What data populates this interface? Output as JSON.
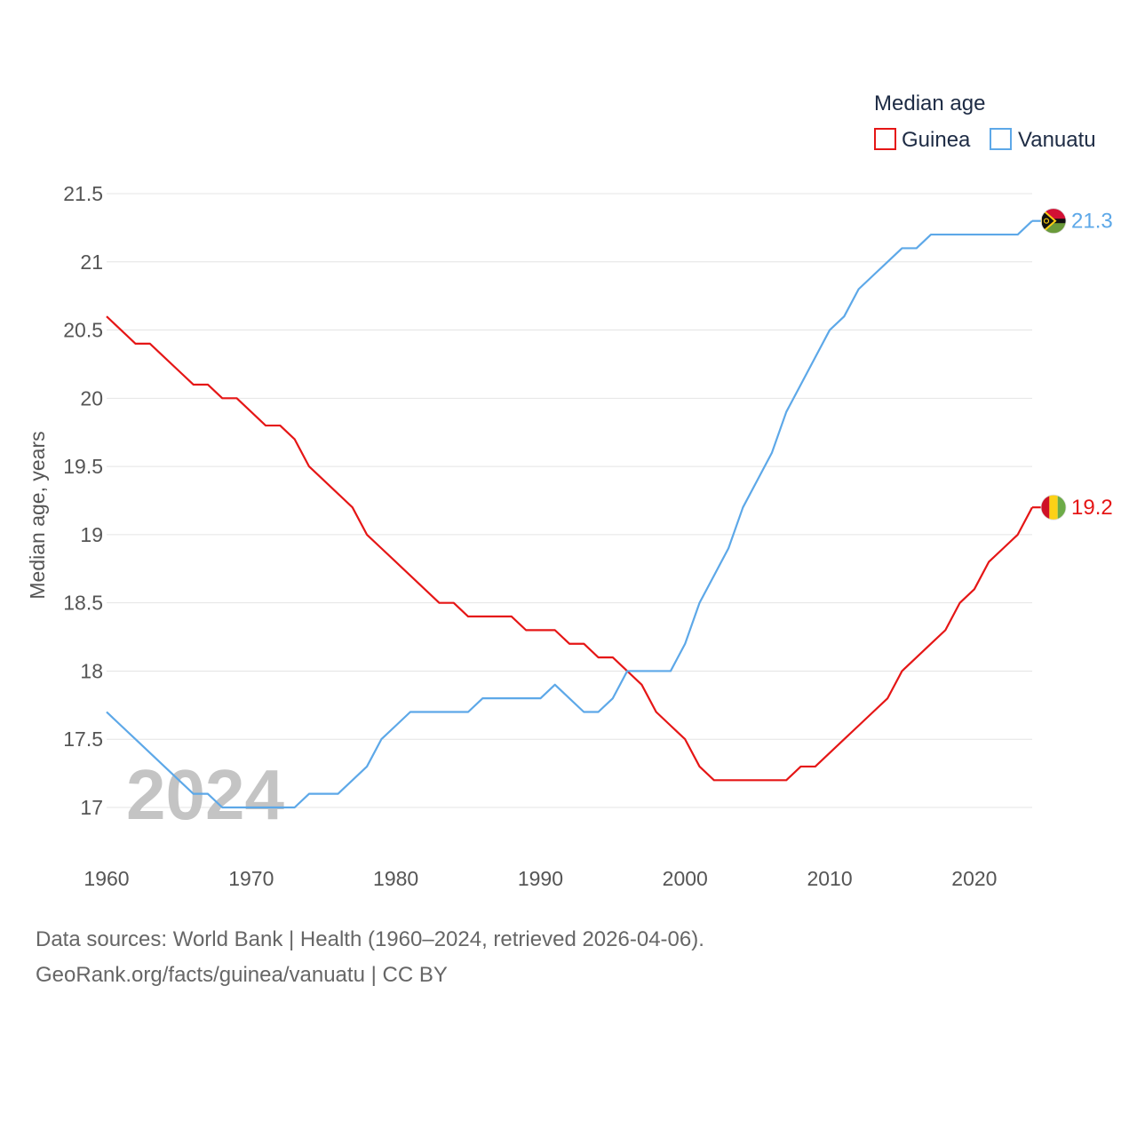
{
  "chart_data": {
    "type": "line",
    "title": "",
    "legend_title": "Median age",
    "ylabel": "Median age, years",
    "xlabel": "",
    "xlim": [
      1960,
      2024
    ],
    "ylim": [
      16.8,
      21.65
    ],
    "yticks": [
      17,
      17.5,
      18,
      18.5,
      19,
      19.5,
      20,
      20.5,
      21,
      21.5
    ],
    "ytick_labels": [
      "17",
      "17.5",
      "18",
      "18.5",
      "19",
      "19.5",
      "20",
      "20.5",
      "21",
      "21.5"
    ],
    "xticks": [
      1960,
      1970,
      1980,
      1990,
      2000,
      2010,
      2020
    ],
    "xtick_labels": [
      "1960",
      "1970",
      "1980",
      "1990",
      "2000",
      "2010",
      "2020"
    ],
    "grid": true,
    "legend_position": "top-right",
    "current_year": "2024",
    "x": [
      1960,
      1961,
      1962,
      1963,
      1964,
      1965,
      1966,
      1967,
      1968,
      1969,
      1970,
      1971,
      1972,
      1973,
      1974,
      1975,
      1976,
      1977,
      1978,
      1979,
      1980,
      1981,
      1982,
      1983,
      1984,
      1985,
      1986,
      1987,
      1988,
      1989,
      1990,
      1991,
      1992,
      1993,
      1994,
      1995,
      1996,
      1997,
      1998,
      1999,
      2000,
      2001,
      2002,
      2003,
      2004,
      2005,
      2006,
      2007,
      2008,
      2009,
      2010,
      2011,
      2012,
      2013,
      2014,
      2015,
      2016,
      2017,
      2018,
      2019,
      2020,
      2021,
      2022,
      2023,
      2024
    ],
    "series": [
      {
        "name": "Guinea",
        "color": "#e51616",
        "end_label": "19.2",
        "flag": "guinea-flag-icon",
        "values": [
          20.6,
          20.5,
          20.4,
          20.4,
          20.3,
          20.2,
          20.1,
          20.1,
          20.0,
          20.0,
          19.9,
          19.8,
          19.8,
          19.7,
          19.5,
          19.4,
          19.3,
          19.2,
          19.0,
          18.9,
          18.8,
          18.7,
          18.6,
          18.5,
          18.5,
          18.4,
          18.4,
          18.4,
          18.4,
          18.3,
          18.3,
          18.3,
          18.2,
          18.2,
          18.1,
          18.1,
          18.0,
          17.9,
          17.7,
          17.6,
          17.5,
          17.3,
          17.2,
          17.2,
          17.2,
          17.2,
          17.2,
          17.2,
          17.3,
          17.3,
          17.4,
          17.5,
          17.6,
          17.7,
          17.8,
          18.0,
          18.1,
          18.2,
          18.3,
          18.5,
          18.6,
          18.8,
          18.9,
          19.0,
          19.2
        ]
      },
      {
        "name": "Vanuatu",
        "color": "#5da8e8",
        "end_label": "21.3",
        "flag": "vanuatu-flag-icon",
        "values": [
          17.7,
          17.6,
          17.5,
          17.4,
          17.3,
          17.2,
          17.1,
          17.1,
          17.0,
          17.0,
          17.0,
          17.0,
          17.0,
          17.0,
          17.1,
          17.1,
          17.1,
          17.2,
          17.3,
          17.5,
          17.6,
          17.7,
          17.7,
          17.7,
          17.7,
          17.7,
          17.8,
          17.8,
          17.8,
          17.8,
          17.8,
          17.9,
          17.8,
          17.7,
          17.7,
          17.8,
          18.0,
          18.0,
          18.0,
          18.0,
          18.2,
          18.5,
          18.7,
          18.9,
          19.2,
          19.4,
          19.6,
          19.9,
          20.1,
          20.3,
          20.5,
          20.6,
          20.8,
          20.9,
          21.0,
          21.1,
          21.1,
          21.2,
          21.2,
          21.2,
          21.2,
          21.2,
          21.2,
          21.2,
          21.3
        ]
      }
    ]
  },
  "footer": {
    "source_line": "Data sources: World Bank | Health (1960–2024, retrieved 2026-04-06).",
    "credit_line": "GeoRank.org/facts/guinea/vanuatu | CC BY"
  }
}
